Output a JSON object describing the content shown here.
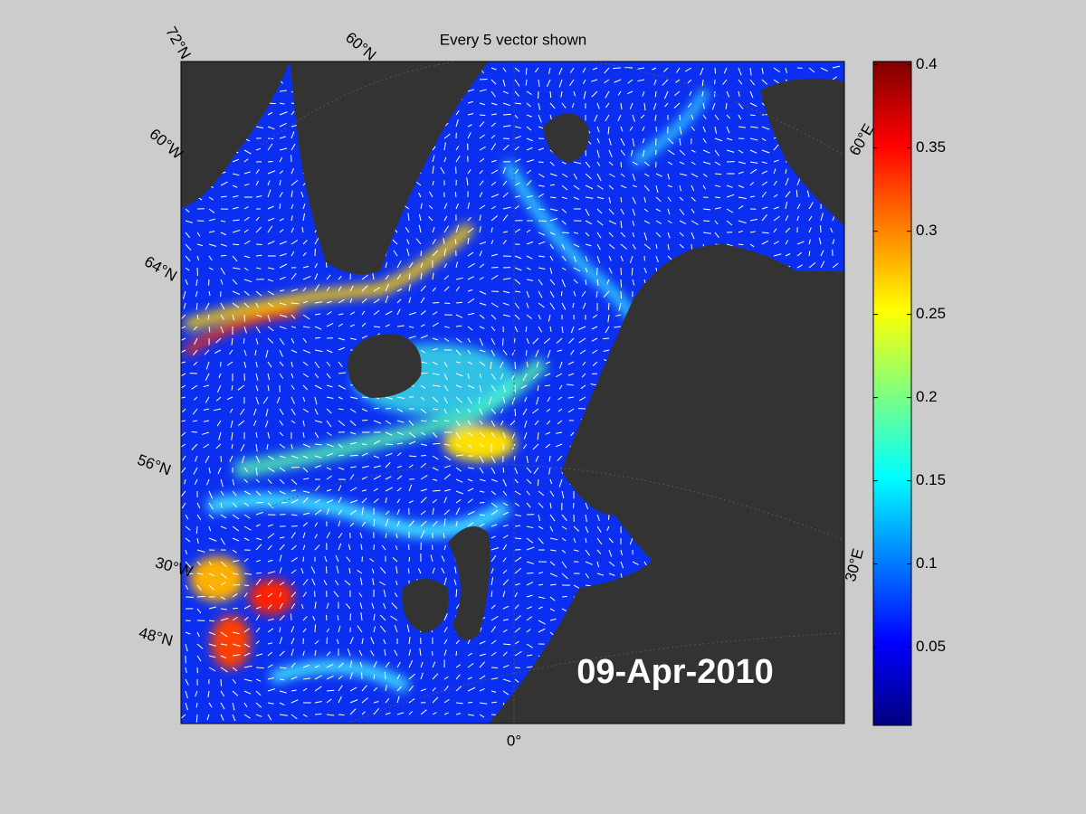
{
  "map": {
    "title": "Every 5 vector shown",
    "graticule_labels": [
      "72°N",
      "60°N",
      "60°W",
      "64°N",
      "56°N",
      "30°W",
      "48°N",
      "0°",
      "60°E",
      "30°E"
    ],
    "date": "09-Apr-2010",
    "colorbar": {
      "clim": [
        0.003,
        0.402
      ],
      "ticks": [
        0.05,
        0.1,
        0.15,
        0.2,
        0.25,
        0.3,
        0.35,
        0.4
      ]
    }
  }
}
